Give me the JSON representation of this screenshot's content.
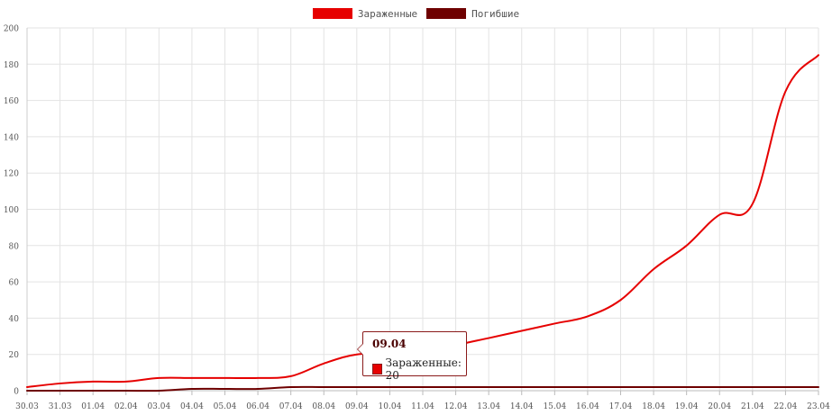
{
  "chart_data": {
    "type": "line",
    "x": [
      "30.03",
      "31.03",
      "01.04",
      "02.04",
      "03.04",
      "04.04",
      "05.04",
      "06.04",
      "07.04",
      "08.04",
      "09.04",
      "10.04",
      "11.04",
      "12.04",
      "13.04",
      "14.04",
      "15.04",
      "16.04",
      "17.04",
      "18.04",
      "19.04",
      "20.04",
      "21.04",
      "22.04",
      "23.04"
    ],
    "series": [
      {
        "name": "Зараженные",
        "color": "#e60000",
        "values": [
          2,
          4,
          5,
          5,
          7,
          7,
          7,
          7,
          8,
          15,
          20,
          20,
          20,
          25,
          29,
          33,
          37,
          41,
          50,
          67,
          80,
          97,
          103,
          165,
          185
        ]
      },
      {
        "name": "Погибшие",
        "color": "#6e0000",
        "values": [
          0,
          0,
          0,
          0,
          0,
          1,
          1,
          1,
          2,
          2,
          2,
          2,
          2,
          2,
          2,
          2,
          2,
          2,
          2,
          2,
          2,
          2,
          2,
          2,
          2
        ]
      }
    ],
    "ylim": [
      0,
      200
    ],
    "yticks": [
      0,
      20,
      40,
      60,
      80,
      100,
      120,
      140,
      160,
      180,
      200
    ],
    "grid": true,
    "legend_position": "top-center",
    "xlabel": "",
    "ylabel": ""
  },
  "legend": {
    "items": [
      {
        "label": "Зараженные",
        "color": "#e60000"
      },
      {
        "label": "Погибшие",
        "color": "#6e0000"
      }
    ]
  },
  "tooltip": {
    "title": "09.04",
    "series_label": "Зараженные",
    "value": "20",
    "text": "Зараженные: 20",
    "color": "#e60000"
  }
}
